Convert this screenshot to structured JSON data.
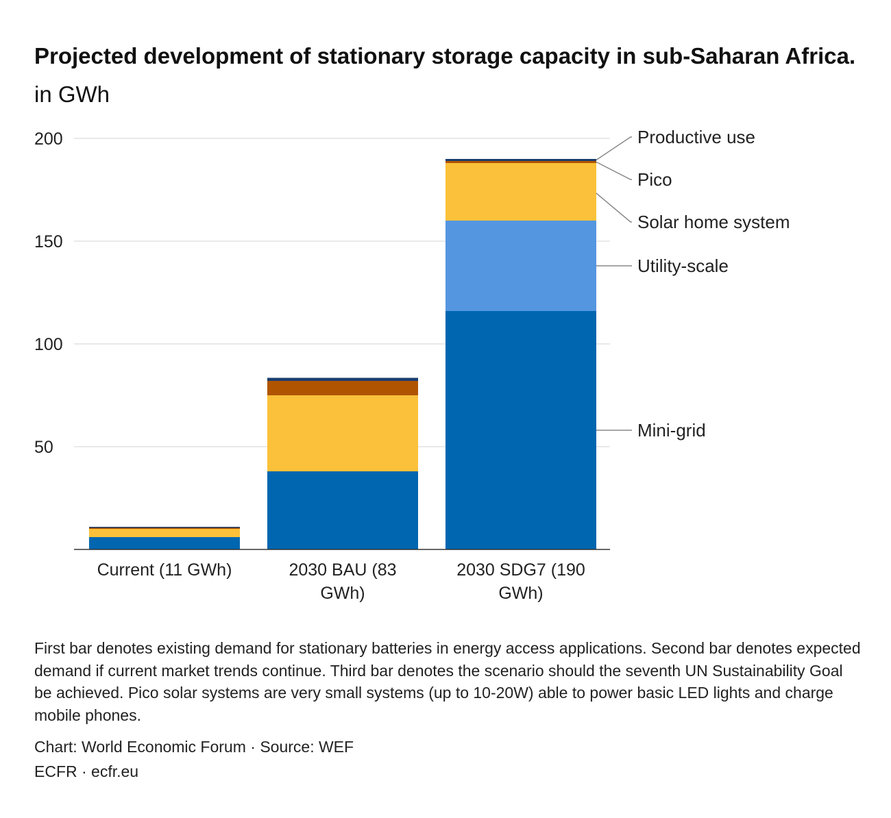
{
  "title": {
    "bold": "Projected development of stationary storage capacity in sub-Saharan Africa.",
    "sub": "in GWh"
  },
  "chart_data": {
    "type": "bar",
    "stacked": true,
    "categories": [
      "Current (11 GWh)",
      "2030 BAU (83 GWh)",
      "2030 SDG7 (190 GWh)"
    ],
    "category_label_lines": [
      [
        "Current (11 GWh)"
      ],
      [
        "2030 BAU (83",
        "GWh)"
      ],
      [
        "2030 SDG7 (190",
        "GWh)"
      ]
    ],
    "series": [
      {
        "name": "Mini-grid",
        "color": "#0066b0",
        "values": [
          6,
          38,
          116
        ]
      },
      {
        "name": "Utility-scale",
        "color": "#5596e0",
        "values": [
          0,
          0,
          44
        ]
      },
      {
        "name": "Solar home system",
        "color": "#fbc13a",
        "values": [
          4,
          37,
          28
        ]
      },
      {
        "name": "Pico",
        "color": "#b05400",
        "values": [
          0.5,
          7,
          1
        ]
      },
      {
        "name": "Productive use",
        "color": "#1a3d6e",
        "values": [
          0.5,
          1.5,
          1
        ]
      }
    ],
    "ylim": [
      0,
      200
    ],
    "yticks": [
      50,
      100,
      150,
      200
    ],
    "grid": true,
    "legend": "direct labels on right of last bar"
  },
  "note": "First bar denotes existing demand for stationary batteries in energy access applications. Second bar denotes expected demand if current market trends continue. Third bar denotes the scenario should the seventh UN Sustainability Goal be achieved. Pico solar systems are very small systems (up to 10-20W) able to power basic LED lights and charge mobile phones.",
  "source": "Chart: World Economic Forum · Source: WEF",
  "brand": "ECFR · ecfr.eu"
}
